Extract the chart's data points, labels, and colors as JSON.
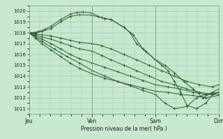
{
  "bg_color": "#c8e8d0",
  "grid_color": "#a0c8b0",
  "line_color": "#2a5e2a",
  "title": "Pression niveau de la mer( hPa )",
  "ylim": [
    1010.5,
    1020.5
  ],
  "yticks": [
    1011,
    1012,
    1013,
    1014,
    1015,
    1016,
    1017,
    1018,
    1019,
    1020
  ],
  "xlabels": [
    "Jeu",
    "Ven",
    "Sam",
    "Dim"
  ],
  "xpositions": [
    0,
    1,
    2,
    3
  ],
  "dense_series": [
    {
      "x": [
        0.0,
        0.08,
        0.15,
        0.25,
        0.35,
        0.5,
        0.65,
        0.75,
        0.85,
        1.0,
        1.1,
        1.2,
        1.3,
        1.5,
        1.6,
        1.7,
        1.85,
        2.0,
        2.1,
        2.2,
        2.3,
        2.4,
        2.5,
        2.65,
        2.8,
        2.9,
        3.0
      ],
      "y": [
        1018.0,
        1018.0,
        1018.1,
        1018.3,
        1018.6,
        1019.2,
        1019.7,
        1019.85,
        1019.9,
        1019.8,
        1019.5,
        1019.3,
        1019.2,
        1018.5,
        1018.0,
        1017.0,
        1016.3,
        1015.5,
        1015.0,
        1014.5,
        1013.5,
        1012.5,
        1011.3,
        1011.0,
        1011.5,
        1012.3,
        1012.5
      ]
    },
    {
      "x": [
        0.0,
        0.1,
        0.2,
        0.35,
        0.5,
        0.65,
        0.8,
        1.0,
        1.15,
        1.3,
        1.5,
        1.65,
        1.8,
        2.0,
        2.15,
        2.3,
        2.45,
        2.6,
        2.75,
        2.9,
        3.0
      ],
      "y": [
        1018.0,
        1018.0,
        1018.1,
        1018.4,
        1019.0,
        1019.5,
        1019.65,
        1019.6,
        1019.4,
        1019.2,
        1018.5,
        1017.8,
        1016.5,
        1015.5,
        1015.0,
        1014.3,
        1013.5,
        1012.8,
        1012.0,
        1012.5,
        1012.8
      ]
    },
    {
      "x": [
        0.0,
        0.1,
        0.2,
        0.35,
        0.5,
        0.65,
        0.8,
        1.0,
        1.15,
        1.3,
        1.5,
        1.7,
        1.9,
        2.1,
        2.3,
        2.5,
        2.7,
        2.9,
        3.0
      ],
      "y": [
        1018.0,
        1017.9,
        1017.8,
        1017.7,
        1017.5,
        1017.3,
        1017.1,
        1017.0,
        1016.8,
        1016.5,
        1016.0,
        1015.5,
        1015.0,
        1014.5,
        1014.0,
        1013.5,
        1013.2,
        1013.0,
        1013.2
      ]
    },
    {
      "x": [
        0.0,
        0.1,
        0.2,
        0.35,
        0.5,
        0.65,
        0.8,
        1.0,
        1.15,
        1.3,
        1.5,
        1.7,
        1.9,
        2.1,
        2.3,
        2.5,
        2.7,
        2.9,
        3.0
      ],
      "y": [
        1018.0,
        1017.8,
        1017.6,
        1017.4,
        1017.1,
        1016.8,
        1016.5,
        1016.3,
        1015.9,
        1015.5,
        1015.0,
        1014.5,
        1014.0,
        1013.5,
        1013.2,
        1012.8,
        1012.5,
        1012.3,
        1012.5
      ]
    },
    {
      "x": [
        0.0,
        0.1,
        0.2,
        0.35,
        0.5,
        0.65,
        0.8,
        1.0,
        1.2,
        1.4,
        1.6,
        1.8,
        2.0,
        2.2,
        2.4,
        2.6,
        2.8,
        3.0
      ],
      "y": [
        1018.0,
        1017.7,
        1017.4,
        1017.0,
        1016.5,
        1016.0,
        1015.6,
        1015.2,
        1014.8,
        1014.4,
        1014.0,
        1013.6,
        1013.2,
        1013.0,
        1012.8,
        1012.5,
        1012.3,
        1012.3
      ]
    },
    {
      "x": [
        0.0,
        0.1,
        0.2,
        0.35,
        0.5,
        0.65,
        0.8,
        1.0,
        1.2,
        1.4,
        1.6,
        1.8,
        2.0,
        2.2,
        2.4,
        2.6,
        2.8,
        3.0
      ],
      "y": [
        1018.0,
        1017.5,
        1017.0,
        1016.4,
        1015.8,
        1015.2,
        1014.7,
        1014.2,
        1013.8,
        1013.5,
        1013.2,
        1012.9,
        1012.6,
        1012.5,
        1012.3,
        1012.2,
        1012.0,
        1012.2
      ]
    },
    {
      "x": [
        0.0,
        0.2,
        0.4,
        0.6,
        0.8,
        1.0,
        1.2,
        1.4,
        1.6,
        1.8,
        2.0,
        2.15,
        2.3,
        2.5,
        2.65,
        2.8,
        3.0
      ],
      "y": [
        1018.0,
        1017.2,
        1016.5,
        1015.8,
        1015.2,
        1014.5,
        1014.0,
        1013.5,
        1013.1,
        1012.7,
        1012.3,
        1011.5,
        1011.0,
        1011.2,
        1012.0,
        1012.3,
        1012.5
      ]
    }
  ]
}
